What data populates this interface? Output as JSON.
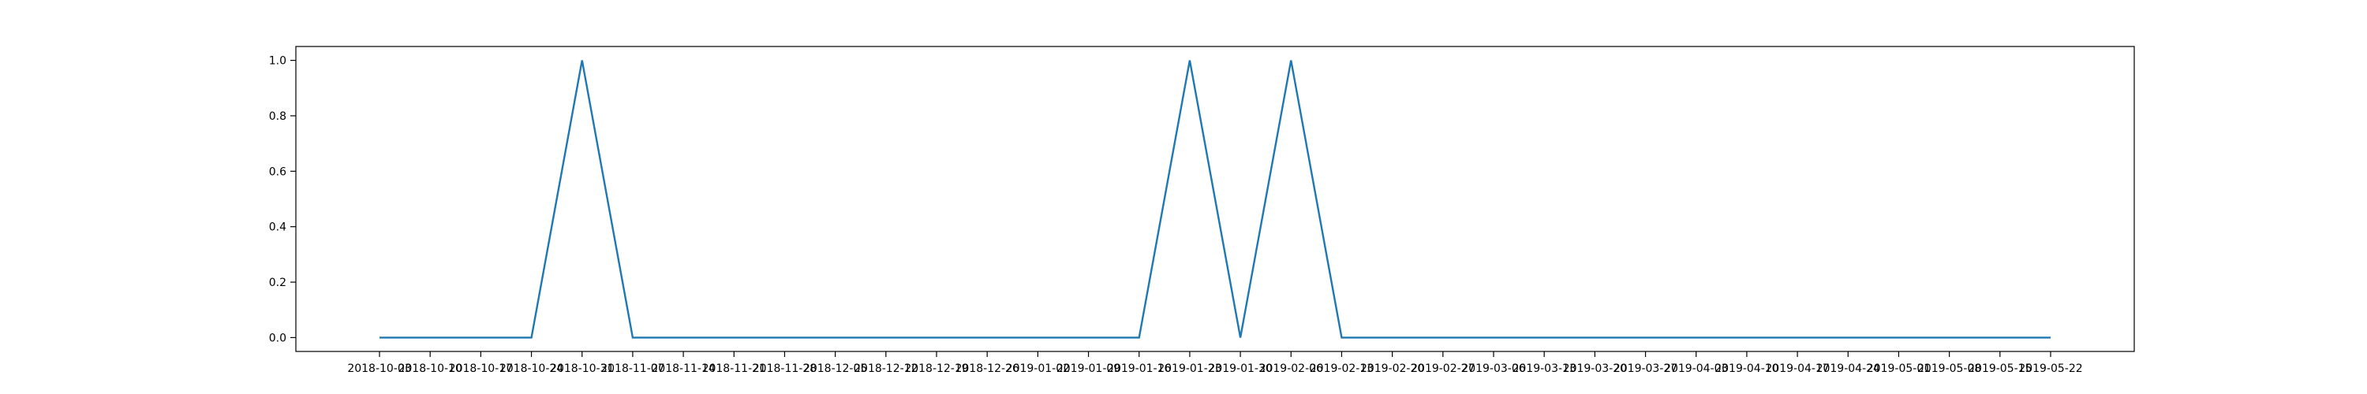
{
  "chart_data": {
    "type": "line",
    "title": "",
    "xlabel": "",
    "ylabel": "",
    "grid": false,
    "legend": "none",
    "colors": {
      "line": "#1f77b4",
      "axes": "#000000",
      "background": "#ffffff"
    },
    "x": [
      "2018-10-03",
      "2018-10-10",
      "2018-10-17",
      "2018-10-24",
      "2018-10-31",
      "2018-11-07",
      "2018-11-14",
      "2018-11-21",
      "2018-11-28",
      "2018-12-05",
      "2018-12-12",
      "2018-12-19",
      "2018-12-26",
      "2019-01-02",
      "2019-01-09",
      "2019-01-16",
      "2019-01-23",
      "2019-01-30",
      "2019-02-06",
      "2019-02-13",
      "2019-02-20",
      "2019-02-27",
      "2019-03-06",
      "2019-03-13",
      "2019-03-20",
      "2019-03-27",
      "2019-04-03",
      "2019-04-10",
      "2019-04-17",
      "2019-04-24",
      "2019-05-01",
      "2019-05-08",
      "2019-05-15",
      "2019-05-22"
    ],
    "series": [
      {
        "values": [
          0,
          0,
          0,
          0,
          1,
          0,
          0,
          0,
          0,
          0,
          0,
          0,
          0,
          0,
          0,
          0,
          1,
          0,
          1,
          0,
          0,
          0,
          0,
          0,
          0,
          0,
          0,
          0,
          0,
          0,
          0,
          0,
          0,
          0
        ]
      }
    ],
    "x_tick_labels": [
      "2018-10-03",
      "2018-10-10",
      "2018-10-17",
      "2018-10-24",
      "2018-10-31",
      "2018-11-07",
      "2018-11-14",
      "2018-11-21",
      "2018-11-28",
      "2018-12-05",
      "2018-12-12",
      "2018-12-19",
      "2018-12-26",
      "2019-01-02",
      "2019-01-09",
      "2019-01-16",
      "2019-01-23",
      "2019-01-30",
      "2019-02-06",
      "2019-02-13",
      "2019-02-20",
      "2019-02-27",
      "2019-03-06",
      "2019-03-13",
      "2019-03-20",
      "2019-03-27",
      "2019-04-03",
      "2019-04-10",
      "2019-04-17",
      "2019-04-24",
      "2019-05-01",
      "2019-05-08",
      "2019-05-15",
      "2019-05-22"
    ],
    "y_ticks": [
      0.0,
      0.2,
      0.4,
      0.6,
      0.8,
      1.0
    ],
    "y_tick_labels": [
      "0.0",
      "0.2",
      "0.4",
      "0.6",
      "0.8",
      "1.0"
    ],
    "ylim": [
      -0.05,
      1.05
    ]
  }
}
